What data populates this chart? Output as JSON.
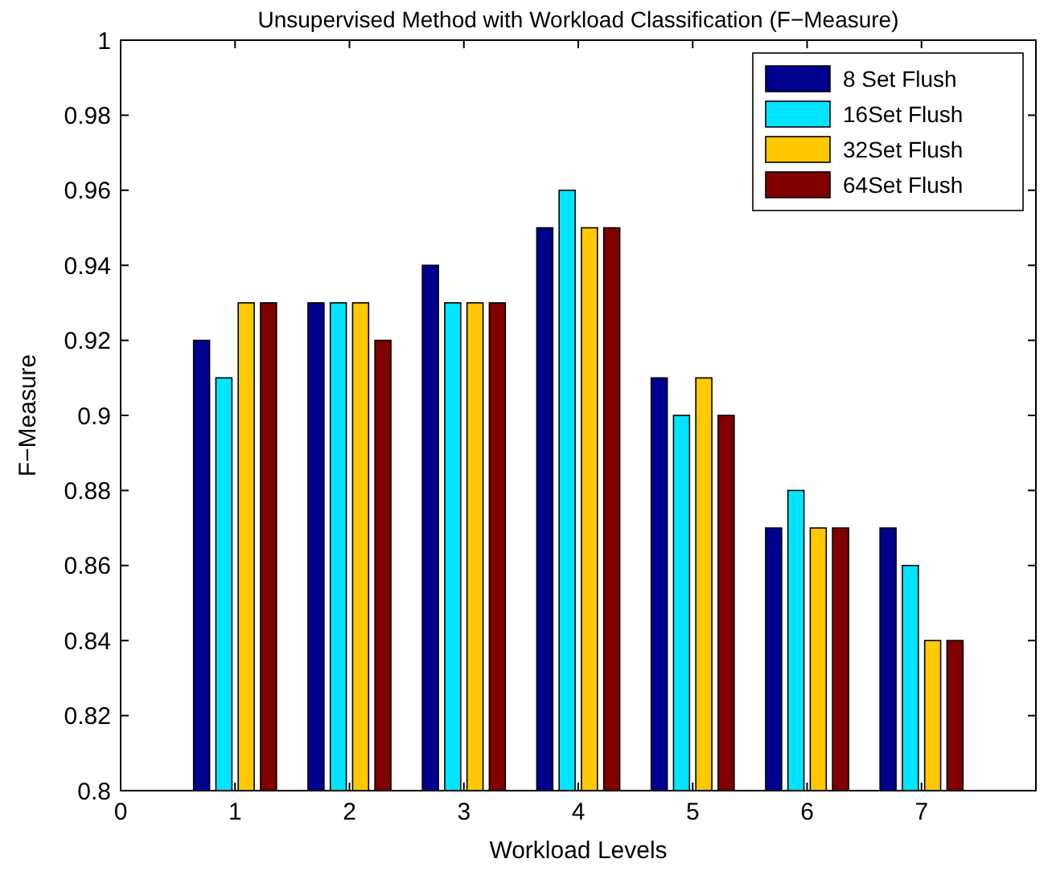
{
  "chart_data": {
    "type": "bar",
    "title": "Unsupervised Method with Workload Classification (F−Measure)",
    "xlabel": "Workload Levels",
    "ylabel": "F−Measure",
    "x": [
      1,
      2,
      3,
      4,
      5,
      6,
      7
    ],
    "series": [
      {
        "name": "8 Set Flush",
        "color": "#00008f",
        "values": [
          0.92,
          0.93,
          0.94,
          0.95,
          0.91,
          0.87,
          0.87
        ]
      },
      {
        "name": "16Set Flush",
        "color": "#00e5ff",
        "values": [
          0.91,
          0.93,
          0.93,
          0.96,
          0.9,
          0.88,
          0.86
        ]
      },
      {
        "name": "32Set Flush",
        "color": "#ffc800",
        "values": [
          0.93,
          0.93,
          0.93,
          0.95,
          0.91,
          0.87,
          0.84
        ]
      },
      {
        "name": "64Set Flush",
        "color": "#800000",
        "values": [
          0.93,
          0.92,
          0.93,
          0.95,
          0.9,
          0.87,
          0.84
        ]
      }
    ],
    "xlim": [
      0,
      8
    ],
    "xticks": [
      0,
      1,
      2,
      3,
      4,
      5,
      6,
      7
    ],
    "ylim": [
      0.8,
      1
    ],
    "yticks": [
      0.8,
      0.82,
      0.84,
      0.86,
      0.88,
      0.9,
      0.92,
      0.94,
      0.96,
      0.98,
      1
    ],
    "grid": false,
    "legend": "top right"
  }
}
